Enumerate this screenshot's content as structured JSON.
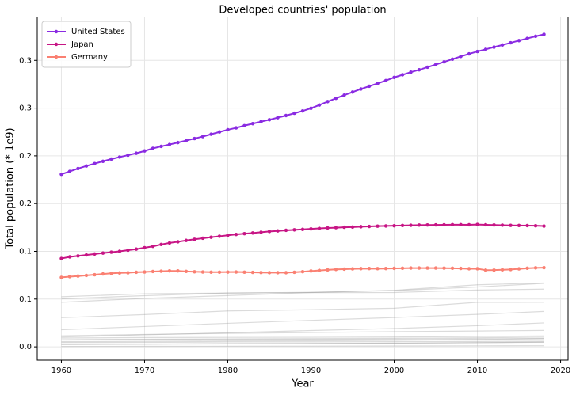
{
  "chart_data": {
    "type": "line",
    "title": "Developed countries' population",
    "x_label": "Year",
    "y_label": "Total population (* 1e9)",
    "x": [
      1960,
      1961,
      1962,
      1963,
      1964,
      1965,
      1966,
      1967,
      1968,
      1969,
      1970,
      1971,
      1972,
      1973,
      1974,
      1975,
      1976,
      1977,
      1978,
      1979,
      1980,
      1981,
      1982,
      1983,
      1984,
      1985,
      1986,
      1987,
      1988,
      1989,
      1990,
      1991,
      1992,
      1993,
      1994,
      1995,
      1996,
      1997,
      1998,
      1999,
      2000,
      2001,
      2002,
      2003,
      2004,
      2005,
      2006,
      2007,
      2008,
      2009,
      2010,
      2011,
      2012,
      2013,
      2014,
      2015,
      2016,
      2017,
      2018
    ],
    "series": [
      {
        "name": "United States",
        "color": "#8a2be2",
        "values": [
          0.1807,
          0.1837,
          0.1867,
          0.1894,
          0.1919,
          0.1943,
          0.1966,
          0.1987,
          0.2007,
          0.2027,
          0.2051,
          0.2078,
          0.2099,
          0.2119,
          0.2139,
          0.216,
          0.2181,
          0.2202,
          0.2226,
          0.225,
          0.2273,
          0.2293,
          0.2316,
          0.2337,
          0.2358,
          0.2378,
          0.24,
          0.2422,
          0.2446,
          0.247,
          0.2498,
          0.2532,
          0.2568,
          0.2603,
          0.2636,
          0.2668,
          0.27,
          0.2729,
          0.2758,
          0.2788,
          0.2821,
          0.2849,
          0.2876,
          0.2901,
          0.2928,
          0.2956,
          0.2984,
          0.3012,
          0.3041,
          0.3068,
          0.3093,
          0.3116,
          0.3139,
          0.3161,
          0.3184,
          0.3207,
          0.323,
          0.3252,
          0.3272
        ]
      },
      {
        "name": "Japan",
        "color": "#c71585",
        "values": [
          0.0925,
          0.0942,
          0.0952,
          0.0962,
          0.0972,
          0.0982,
          0.0991,
          0.1,
          0.1012,
          0.1023,
          0.1038,
          0.1052,
          0.1072,
          0.1088,
          0.11,
          0.1114,
          0.1126,
          0.1137,
          0.1148,
          0.1158,
          0.1168,
          0.1177,
          0.1185,
          0.1192,
          0.12,
          0.1208,
          0.1214,
          0.122,
          0.1225,
          0.123,
          0.1235,
          0.124,
          0.1245,
          0.1248,
          0.1252,
          0.1254,
          0.1258,
          0.1261,
          0.1264,
          0.1266,
          0.1268,
          0.1271,
          0.1273,
          0.1275,
          0.1276,
          0.1277,
          0.1278,
          0.1279,
          0.1279,
          0.1278,
          0.1281,
          0.1278,
          0.1276,
          0.1274,
          0.1272,
          0.1271,
          0.127,
          0.1268,
          0.1265
        ]
      },
      {
        "name": "Germany",
        "color": "#fa8072",
        "values": [
          0.0727,
          0.0735,
          0.0741,
          0.0748,
          0.0755,
          0.0763,
          0.077,
          0.0774,
          0.0776,
          0.0781,
          0.0784,
          0.0789,
          0.0792,
          0.0795,
          0.0795,
          0.079,
          0.0786,
          0.0784,
          0.0782,
          0.0782,
          0.0783,
          0.0784,
          0.0782,
          0.078,
          0.0778,
          0.0777,
          0.0777,
          0.0777,
          0.0781,
          0.0787,
          0.0794,
          0.08,
          0.0806,
          0.0811,
          0.0814,
          0.0817,
          0.0819,
          0.082,
          0.0819,
          0.082,
          0.0822,
          0.0823,
          0.0825,
          0.0825,
          0.0825,
          0.0825,
          0.0824,
          0.0823,
          0.0821,
          0.0818,
          0.0818,
          0.0803,
          0.0804,
          0.0807,
          0.081,
          0.0817,
          0.0823,
          0.0827,
          0.0829
        ]
      }
    ],
    "background_series": {
      "color": "#999999",
      "x": [
        1960,
        1970,
        1980,
        1990,
        2000,
        2010,
        2018
      ],
      "lines": [
        [
          0.0524,
          0.0556,
          0.0563,
          0.0571,
          0.0589,
          0.0627,
          0.0665
        ],
        [
          0.0466,
          0.0507,
          0.0537,
          0.0569,
          0.0592,
          0.065,
          0.0669
        ],
        [
          0.0502,
          0.0536,
          0.0564,
          0.0568,
          0.0569,
          0.0595,
          0.0604
        ],
        [
          0.0305,
          0.0338,
          0.0376,
          0.0389,
          0.0404,
          0.0466,
          0.0467
        ],
        [
          0.0179,
          0.0213,
          0.0246,
          0.0277,
          0.0307,
          0.034,
          0.0371
        ],
        [
          0.0103,
          0.0126,
          0.0147,
          0.0171,
          0.0192,
          0.0221,
          0.025
        ],
        [
          0.0115,
          0.013,
          0.0141,
          0.015,
          0.0159,
          0.0166,
          0.0172
        ],
        [
          0.0092,
          0.0097,
          0.0099,
          0.01,
          0.0103,
          0.0109,
          0.0114
        ],
        [
          0.0075,
          0.008,
          0.0083,
          0.0086,
          0.0089,
          0.0094,
          0.0102
        ],
        [
          0.0071,
          0.0075,
          0.0076,
          0.0078,
          0.008,
          0.0084,
          0.0088
        ],
        [
          0.0054,
          0.0057,
          0.0061,
          0.0063,
          0.0068,
          0.0076,
          0.0085
        ],
        [
          0.0045,
          0.0046,
          0.0051,
          0.0052,
          0.0054,
          0.0056,
          0.0058
        ],
        [
          0.0024,
          0.0028,
          0.0031,
          0.0034,
          0.0038,
          0.0044,
          0.0049
        ],
        [
          0.0028,
          0.0029,
          0.0034,
          0.0035,
          0.0038,
          0.0044,
          0.0048
        ],
        [
          0.0004,
          0.0005,
          0.0006,
          0.0007,
          0.0009,
          0.0011,
          0.0012
        ]
      ]
    },
    "xlim": [
      1957.1,
      2020.9
    ],
    "ylim": [
      -0.014,
      0.345
    ],
    "xticks": [
      1960,
      1970,
      1980,
      1990,
      2000,
      2010,
      2020
    ],
    "yticks": [
      {
        "value": 0,
        "label": "0.0"
      },
      {
        "value": 0.05,
        "label": "0.1"
      },
      0.1,
      {
        "value": 0.15,
        "label": "0.2"
      },
      0.2,
      {
        "value": 0.25,
        "label": "0.3"
      },
      0.3
    ],
    "grid": true,
    "legend": "upper-left"
  }
}
